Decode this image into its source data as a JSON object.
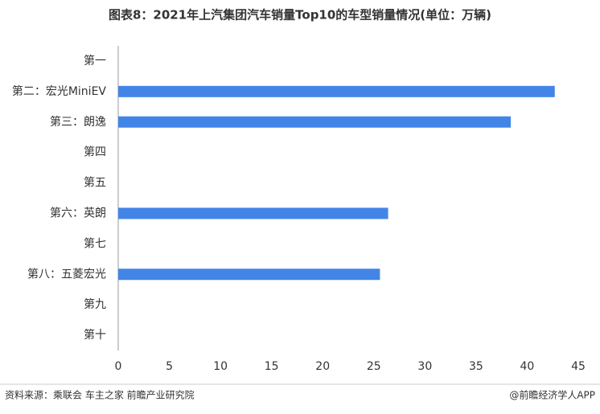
{
  "chart_data": {
    "type": "bar",
    "orientation": "horizontal",
    "title": "图表8：2021年上汽集团汽车销量Top10的车型销量情况(单位：万辆)",
    "categories": [
      "第一",
      "第二：宏光MiniEV",
      "第三：朗逸",
      "第四",
      "第五",
      "第六：英朗",
      "第七",
      "第八：五菱宏光",
      "第九",
      "第十"
    ],
    "values": [
      null,
      42.7,
      38.4,
      null,
      null,
      26.4,
      null,
      25.6,
      null,
      null
    ],
    "color": "#4285e6",
    "xlim": [
      0,
      45
    ],
    "xticks": [
      0,
      5,
      10,
      15,
      20,
      25,
      30,
      35,
      40,
      45
    ],
    "source": "资料来源：乘联会 车主之家 前瞻产业研究院",
    "credit": "@前瞻经济学人APP"
  }
}
